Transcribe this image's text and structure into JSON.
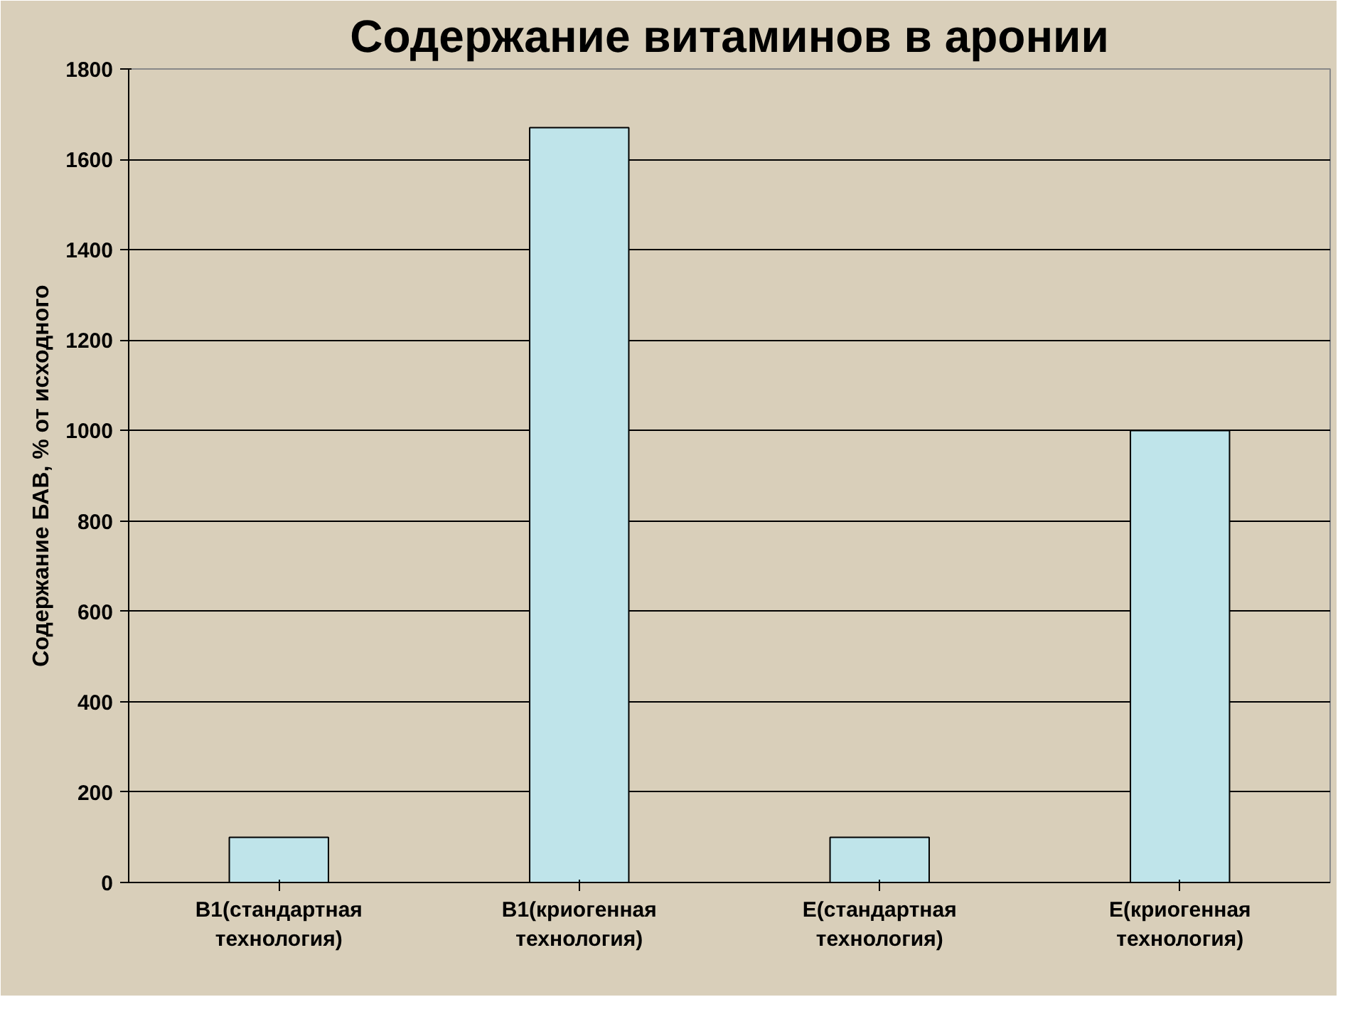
{
  "chart_data": {
    "type": "bar",
    "title": "Содержание витаминов в аронии",
    "ylabel": "Содержание БАВ, % от исходного",
    "categories": [
      "B1(стандартная технология)",
      "B1(криогенная технология)",
      "E(стандартная технология)",
      "E(криогенная технология)"
    ],
    "values": [
      100,
      1670,
      100,
      1000
    ],
    "color": "#bfe4ea",
    "ylim": [
      0,
      1800
    ],
    "yticks": [
      0,
      200,
      400,
      600,
      800,
      1000,
      1200,
      1400,
      1600,
      1800
    ],
    "grid": "y"
  }
}
